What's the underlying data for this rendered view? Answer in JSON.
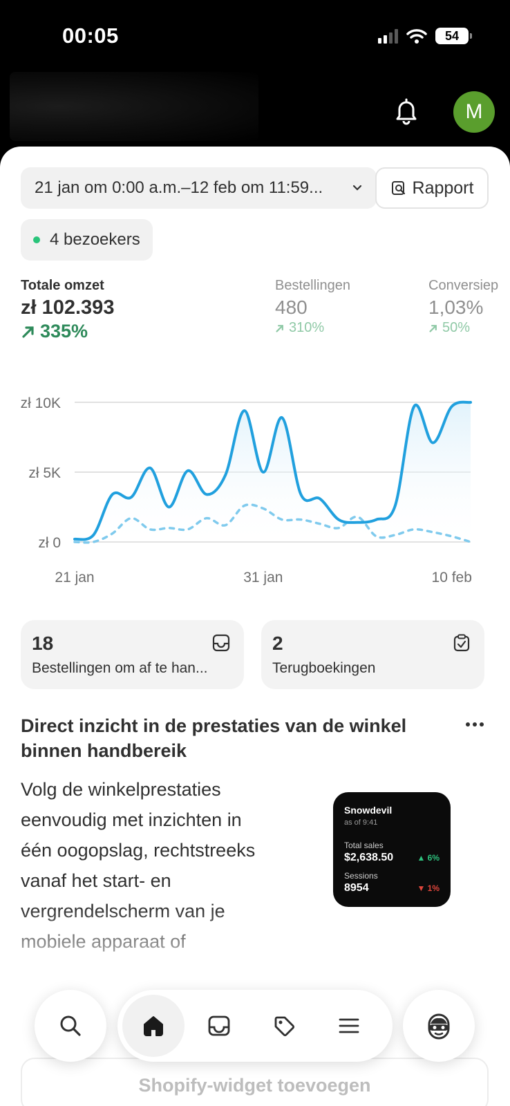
{
  "status_bar": {
    "time": "00:05",
    "battery": "54"
  },
  "header": {
    "avatar_initial": "M"
  },
  "filters": {
    "date_range": "21 jan om 0:00 a.m.–12 feb om 11:59...",
    "report_label": "Rapport",
    "visitors": "4 bezoekers"
  },
  "metrics": [
    {
      "label": "Totale omzet",
      "value": "zł 102.393",
      "change": "335%"
    },
    {
      "label": "Bestellingen",
      "value": "480",
      "change": "310%"
    },
    {
      "label": "Conversiep",
      "value": "1,03%",
      "change": "50%"
    }
  ],
  "chart_data": {
    "type": "line",
    "title": "",
    "xlabel": "",
    "ylabel": "",
    "x_tick_labels": [
      "21 jan",
      "31 jan",
      "10 feb"
    ],
    "y_tick_labels": [
      "zł 0",
      "zł 5K",
      "zł 10K"
    ],
    "ylim": [
      0,
      10000
    ],
    "grid": true,
    "x": [
      "21 jan",
      "22 jan",
      "23 jan",
      "24 jan",
      "25 jan",
      "26 jan",
      "27 jan",
      "28 jan",
      "29 jan",
      "30 jan",
      "31 jan",
      "1 feb",
      "2 feb",
      "3 feb",
      "4 feb",
      "5 feb",
      "6 feb",
      "7 feb",
      "8 feb",
      "9 feb",
      "10 feb",
      "11 feb"
    ],
    "series": [
      {
        "style": "solid",
        "color": "#21a0de",
        "values": [
          200,
          500,
          3400,
          3200,
          5300,
          2500,
          5100,
          3400,
          4800,
          9400,
          5000,
          8900,
          3400,
          3100,
          1600,
          1400,
          1600,
          2600,
          9700,
          7100,
          9700,
          10000
        ]
      },
      {
        "style": "dashed",
        "color": "#7fcaed",
        "values": [
          0,
          0,
          600,
          1700,
          900,
          1000,
          900,
          1700,
          1200,
          2600,
          2400,
          1600,
          1600,
          1300,
          1000,
          1800,
          400,
          500,
          900,
          700,
          400,
          0
        ]
      }
    ]
  },
  "cards": [
    {
      "count": "18",
      "label": "Bestellingen om af te han..."
    },
    {
      "count": "2",
      "label": "Terugboekingen"
    }
  ],
  "promo": {
    "title": "Direct inzicht in de prestaties van de winkel binnen handbereik",
    "body": "Volg de winkelprestaties eenvoudig met inzichten in één oogopslag, rechtstreeks vanaf het start- en vergrendelscherm van je mobiele apparaat of",
    "widget": {
      "store": "Snowdevil",
      "as_of": "as of 9:41",
      "sales_label": "Total sales",
      "sales_value": "$2,638.50",
      "sales_change": "6%",
      "sessions_label": "Sessions",
      "sessions_value": "8954",
      "sessions_change": "1%"
    },
    "add_widget_label": "Shopify-widget toevoegen"
  },
  "nav": {
    "active": "home",
    "items": [
      "search-icon",
      "home-icon",
      "inbox-icon",
      "tag-icon",
      "menu-icon",
      "sidekick-icon"
    ]
  }
}
